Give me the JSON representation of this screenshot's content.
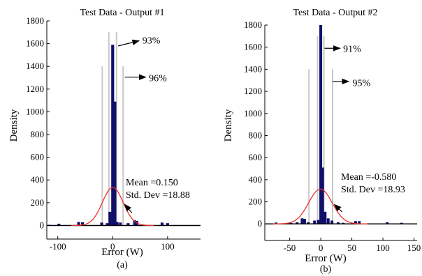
{
  "chart_data": [
    {
      "type": "bar",
      "title": "Test Data - Output #1",
      "xlabel": "Error (W)",
      "ylabel": "Density",
      "caption": "(a)",
      "xlim": [
        -120,
        160
      ],
      "ylim": [
        -120,
        1800
      ],
      "xticks": [
        -100,
        0,
        100
      ],
      "yticks": [
        0,
        200,
        400,
        600,
        800,
        1000,
        1200,
        1400,
        1600,
        1800
      ],
      "colors": {
        "bar": "#10106b",
        "curve": "#e8322c",
        "ref_line": "#c8c8c8",
        "axis": "#000000"
      },
      "bars": [
        {
          "x": -115,
          "value": 5
        },
        {
          "x": -98,
          "value": 15
        },
        {
          "x": -62,
          "value": 30
        },
        {
          "x": -55,
          "value": 28
        },
        {
          "x": -20,
          "value": 25
        },
        {
          "x": -10,
          "value": 20
        },
        {
          "x": -5,
          "value": 120
        },
        {
          "x": 0,
          "value": 1590
        },
        {
          "x": 4,
          "value": 1090
        },
        {
          "x": 8,
          "value": 30
        },
        {
          "x": 14,
          "value": 25
        },
        {
          "x": 28,
          "value": 20
        },
        {
          "x": 40,
          "value": 45
        },
        {
          "x": 44,
          "value": 40
        },
        {
          "x": 90,
          "value": 25
        },
        {
          "x": 100,
          "value": 20
        }
      ],
      "ref_lines": [
        {
          "x": -7,
          "top": 1700
        },
        {
          "x": 7,
          "top": 1700
        },
        {
          "x": -19,
          "top": 1400
        },
        {
          "x": 19,
          "top": 1400
        }
      ],
      "normal_fit": {
        "mean": 0.15,
        "std": 18.88,
        "peak": 335
      },
      "annotations": [
        {
          "label": "93%",
          "x": 54,
          "y": 1630,
          "arrow_from": [
            10,
            1580
          ],
          "arrow_to": [
            48,
            1625
          ]
        },
        {
          "label": "96%",
          "x": 66,
          "y": 1300,
          "arrow_from": [
            22,
            1305
          ],
          "arrow_to": [
            60,
            1305
          ]
        }
      ],
      "stats_text": {
        "mean": "Mean =0.150",
        "std": "Std. Dev =18.88"
      }
    },
    {
      "type": "bar",
      "title": "Test Data - Output #2",
      "xlabel": "Error (W)",
      "ylabel": "Density",
      "caption": "(b)",
      "xlim": [
        -90,
        155
      ],
      "ylim": [
        -150,
        1800
      ],
      "xticks": [
        -50,
        0,
        50,
        100,
        150
      ],
      "yticks": [
        0,
        200,
        400,
        600,
        800,
        1000,
        1200,
        1400,
        1600,
        1800
      ],
      "colors": {
        "bar": "#10106b",
        "curve": "#e8322c",
        "ref_line": "#c8c8c8",
        "axis": "#000000"
      },
      "bars": [
        {
          "x": -72,
          "value": 12
        },
        {
          "x": -48,
          "value": 10
        },
        {
          "x": -38,
          "value": 15
        },
        {
          "x": -30,
          "value": 50
        },
        {
          "x": -26,
          "value": 45
        },
        {
          "x": -20,
          "value": 15
        },
        {
          "x": -10,
          "value": 30
        },
        {
          "x": -4,
          "value": 35
        },
        {
          "x": 0,
          "value": 1800
        },
        {
          "x": 3,
          "value": 510
        },
        {
          "x": 7,
          "value": 110
        },
        {
          "x": 12,
          "value": 50
        },
        {
          "x": 18,
          "value": 30
        },
        {
          "x": 28,
          "value": 15
        },
        {
          "x": 36,
          "value": 10
        },
        {
          "x": 56,
          "value": 25
        },
        {
          "x": 62,
          "value": 25
        },
        {
          "x": 107,
          "value": 15
        },
        {
          "x": 130,
          "value": 10
        }
      ],
      "ref_lines": [
        {
          "x": -5,
          "top": 1700
        },
        {
          "x": 5,
          "top": 1700
        },
        {
          "x": -19,
          "top": 1400
        },
        {
          "x": 19,
          "top": 1400
        }
      ],
      "normal_fit": {
        "mean": -0.58,
        "std": 18.93,
        "peak": 315
      },
      "annotations": [
        {
          "label": "91%",
          "x": 36,
          "y": 1590,
          "arrow_from": [
            6,
            1590
          ],
          "arrow_to": [
            31,
            1590
          ]
        },
        {
          "label": "95%",
          "x": 51,
          "y": 1280,
          "arrow_from": [
            19,
            1290
          ],
          "arrow_to": [
            45,
            1290
          ]
        }
      ],
      "stats_text": {
        "mean": "Mean =-0.580",
        "std": "Std. Dev =18.93"
      }
    }
  ]
}
